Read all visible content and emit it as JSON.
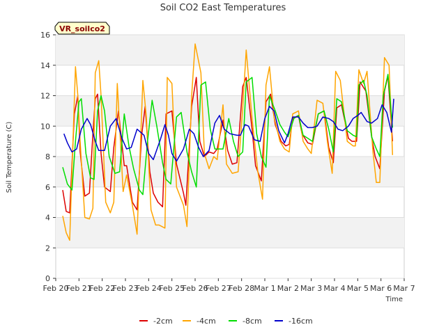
{
  "chart_data": {
    "type": "line",
    "title": "Soil CO2 East Temperatures",
    "xlabel": "Time",
    "ylabel": "Soil Temperature (C)",
    "site_label": "VR_soilco2",
    "ylim": [
      0,
      16
    ],
    "yticks": [
      0,
      2,
      4,
      6,
      8,
      10,
      12,
      14,
      16
    ],
    "xlim": [
      0,
      15
    ],
    "xticks": [
      0,
      1,
      2,
      3,
      4,
      5,
      6,
      7,
      8,
      9,
      10,
      11,
      12,
      13,
      14,
      15
    ],
    "xtick_labels": [
      "Feb 20",
      "Feb 21",
      "Feb 22",
      "Feb 23",
      "Feb 24",
      "Feb 25",
      "Feb 26",
      "Feb 27",
      "Feb 28",
      "Mar 1",
      "Mar 2",
      "Mar 3",
      "Mar 4",
      "Mar 5",
      "Mar 6",
      "Mar 7"
    ],
    "x_unit": "days since Feb 20",
    "grid": "horizontal bands",
    "legend_position": "bottom-center",
    "series": [
      {
        "name": "-2cm",
        "color": "#dd0000",
        "x": [
          0.3,
          0.45,
          0.6,
          0.8,
          0.95,
          1.05,
          1.25,
          1.45,
          1.6,
          1.7,
          1.8,
          1.95,
          2.1,
          2.35,
          2.5,
          2.7,
          2.95,
          3.05,
          3.3,
          3.5,
          3.7,
          3.85,
          4.05,
          4.2,
          4.4,
          4.6,
          4.75,
          5.0,
          5.2,
          5.5,
          5.6,
          5.85,
          6.05,
          6.2,
          6.4,
          6.6,
          6.8,
          6.95,
          7.2,
          7.4,
          7.6,
          7.8,
          8.05,
          8.2,
          8.45,
          8.6,
          8.85,
          9.05,
          9.25,
          9.45,
          9.7,
          9.9,
          10.05,
          10.2,
          10.45,
          10.6,
          10.85,
          11.05,
          11.3,
          11.55,
          11.75,
          11.95,
          12.1,
          12.3,
          12.6,
          12.75,
          12.95,
          13.1,
          13.35,
          13.6,
          13.75,
          13.95,
          14.15,
          14.3,
          14.5
        ],
        "y": [
          5.8,
          4.4,
          4.3,
          10.8,
          12.0,
          8.3,
          5.4,
          5.6,
          9.5,
          11.8,
          12.1,
          8.2,
          6.0,
          5.7,
          8.6,
          11.0,
          7.4,
          7.4,
          5.0,
          4.5,
          9.4,
          11.3,
          7.0,
          5.6,
          5.0,
          4.7,
          10.8,
          11.0,
          7.5,
          5.6,
          4.8,
          11.3,
          13.2,
          9.0,
          8.0,
          8.3,
          8.2,
          8.5,
          10.4,
          8.4,
          7.5,
          7.6,
          12.6,
          13.2,
          9.8,
          7.4,
          6.4,
          11.6,
          12.1,
          10.1,
          9.0,
          8.7,
          8.8,
          10.5,
          10.7,
          9.5,
          8.9,
          8.8,
          10.8,
          11.0,
          8.6,
          7.6,
          11.2,
          11.4,
          9.2,
          9.0,
          9.0,
          12.9,
          12.3,
          9.3,
          8.0,
          7.2,
          12.3,
          13.3,
          9.0
        ]
      },
      {
        "name": "-4cm",
        "color": "#ffa500",
        "x": [
          0.3,
          0.45,
          0.6,
          0.85,
          0.95,
          1.05,
          1.25,
          1.45,
          1.6,
          1.7,
          1.85,
          1.95,
          2.15,
          2.35,
          2.5,
          2.65,
          2.9,
          3.05,
          3.3,
          3.5,
          3.75,
          3.9,
          4.1,
          4.3,
          4.45,
          4.7,
          4.8,
          5.0,
          5.2,
          5.5,
          5.65,
          5.85,
          6.0,
          6.25,
          6.4,
          6.6,
          6.8,
          6.95,
          7.2,
          7.35,
          7.6,
          7.85,
          8.05,
          8.2,
          8.45,
          8.7,
          8.9,
          9.05,
          9.2,
          9.4,
          9.65,
          9.85,
          10.05,
          10.2,
          10.45,
          10.65,
          10.85,
          11.0,
          11.25,
          11.5,
          11.7,
          11.9,
          12.05,
          12.25,
          12.55,
          12.8,
          12.9,
          13.05,
          13.25,
          13.4,
          13.65,
          13.8,
          13.95,
          14.15,
          14.35,
          14.5
        ],
        "y": [
          4.1,
          3.0,
          2.5,
          13.9,
          12.0,
          9.0,
          4.0,
          3.9,
          4.6,
          13.5,
          14.3,
          12.0,
          5.0,
          4.3,
          5.0,
          12.8,
          5.7,
          6.8,
          4.8,
          2.9,
          13.0,
          10.6,
          4.5,
          3.5,
          3.5,
          3.3,
          13.2,
          12.8,
          6.0,
          4.8,
          3.4,
          12.0,
          15.4,
          13.5,
          8.2,
          7.2,
          8.0,
          7.8,
          11.4,
          7.5,
          6.9,
          7.0,
          11.2,
          15.0,
          10.5,
          7.0,
          5.2,
          12.7,
          13.9,
          10.6,
          9.0,
          8.5,
          8.3,
          10.8,
          11.0,
          9.0,
          8.5,
          8.2,
          11.7,
          11.5,
          8.9,
          6.9,
          13.6,
          13.0,
          9.0,
          8.7,
          8.7,
          13.7,
          12.8,
          13.6,
          8.4,
          6.3,
          6.3,
          14.5,
          14.0,
          8.1
        ]
      },
      {
        "name": "-8cm",
        "color": "#00dd00",
        "x": [
          0.3,
          0.5,
          0.7,
          0.85,
          1.0,
          1.1,
          1.3,
          1.5,
          1.65,
          1.8,
          1.95,
          2.1,
          2.3,
          2.55,
          2.75,
          2.95,
          3.15,
          3.35,
          3.6,
          3.75,
          3.95,
          4.15,
          4.35,
          4.6,
          4.75,
          4.95,
          5.2,
          5.4,
          5.65,
          5.85,
          6.05,
          6.25,
          6.45,
          6.65,
          6.85,
          7.05,
          7.2,
          7.45,
          7.65,
          7.85,
          8.05,
          8.2,
          8.45,
          8.65,
          8.85,
          9.05,
          9.2,
          9.45,
          9.65,
          9.85,
          10.0,
          10.25,
          10.45,
          10.65,
          10.85,
          11.05,
          11.3,
          11.55,
          11.75,
          11.95,
          12.1,
          12.3,
          12.55,
          12.8,
          12.95,
          13.05,
          13.25,
          13.4,
          13.6,
          13.8,
          13.95,
          14.1,
          14.3,
          14.5
        ],
        "y": [
          7.3,
          6.2,
          5.8,
          9.0,
          11.6,
          11.8,
          8.2,
          6.6,
          6.5,
          11.0,
          12.0,
          11.0,
          8.0,
          6.9,
          7.0,
          10.8,
          8.7,
          7.2,
          5.8,
          5.5,
          9.0,
          11.7,
          10.0,
          7.6,
          6.5,
          6.2,
          10.6,
          10.9,
          8.3,
          7.0,
          6.0,
          12.7,
          12.9,
          9.8,
          8.5,
          8.5,
          8.5,
          10.5,
          9.0,
          8.0,
          8.3,
          12.9,
          13.2,
          9.5,
          8.0,
          7.3,
          12.0,
          11.0,
          10.1,
          9.6,
          9.3,
          10.5,
          10.7,
          9.4,
          9.2,
          9.0,
          10.8,
          11.0,
          9.8,
          8.3,
          11.8,
          11.6,
          9.7,
          9.4,
          9.3,
          12.7,
          13.0,
          12.0,
          9.3,
          8.5,
          8.0,
          12.0,
          13.4,
          9.9
        ]
      },
      {
        "name": "-16cm",
        "color": "#0000cc",
        "x": [
          0.35,
          0.5,
          0.7,
          0.9,
          1.1,
          1.35,
          1.5,
          1.7,
          1.85,
          2.1,
          2.35,
          2.6,
          2.85,
          3.05,
          3.25,
          3.5,
          3.8,
          4.0,
          4.2,
          4.5,
          4.7,
          4.85,
          5.0,
          5.2,
          5.5,
          5.75,
          5.95,
          6.15,
          6.35,
          6.6,
          6.85,
          7.05,
          7.25,
          7.5,
          7.8,
          7.95,
          8.15,
          8.3,
          8.55,
          8.8,
          9.0,
          9.2,
          9.4,
          9.6,
          9.85,
          10.0,
          10.2,
          10.45,
          10.65,
          10.85,
          11.05,
          11.25,
          11.5,
          11.75,
          11.95,
          12.15,
          12.35,
          12.6,
          12.8,
          13.0,
          13.15,
          13.4,
          13.6,
          13.85,
          14.05,
          14.25,
          14.45,
          14.55
        ],
        "y": [
          9.5,
          8.9,
          8.3,
          8.5,
          9.8,
          10.5,
          10.1,
          9.0,
          8.4,
          8.4,
          10.0,
          10.5,
          9.2,
          8.5,
          8.6,
          9.8,
          9.4,
          8.2,
          7.8,
          9.1,
          10.1,
          9.4,
          8.2,
          7.7,
          8.5,
          9.8,
          9.5,
          8.6,
          8.0,
          8.4,
          10.2,
          10.7,
          9.8,
          9.5,
          9.4,
          9.4,
          10.1,
          10.0,
          9.1,
          9.0,
          10.5,
          11.3,
          11.0,
          9.7,
          8.9,
          9.5,
          10.6,
          10.6,
          10.2,
          9.9,
          9.9,
          10.0,
          10.6,
          10.5,
          10.3,
          9.8,
          9.7,
          10.0,
          10.5,
          10.7,
          10.9,
          10.3,
          10.2,
          10.5,
          11.4,
          10.9,
          9.6,
          11.8
        ]
      }
    ]
  }
}
